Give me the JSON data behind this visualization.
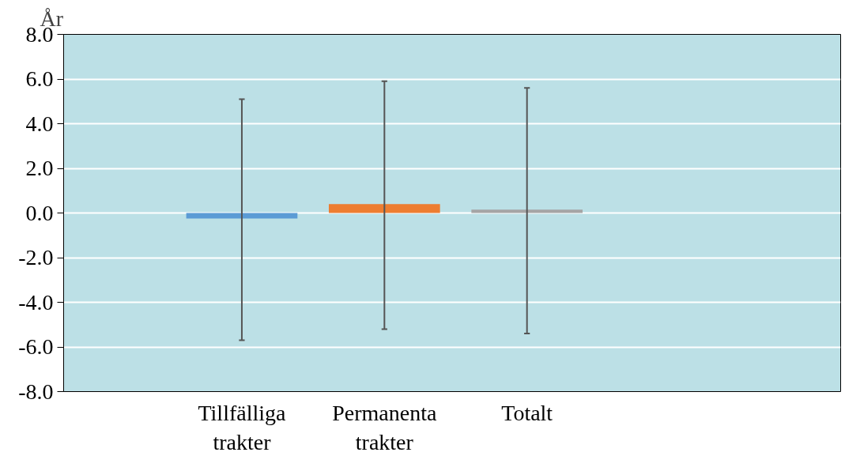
{
  "chart_data": {
    "type": "bar",
    "ylabel": "År",
    "categories": [
      "Tillfälliga trakter",
      "Permanenta trakter",
      "Totalt"
    ],
    "values": [
      -0.25,
      0.4,
      0.15
    ],
    "colors": [
      "#5b9bd5",
      "#ed7d31",
      "#a5a5a5"
    ],
    "errors": [
      [
        -5.7,
        5.1
      ],
      [
        -5.2,
        5.9
      ],
      [
        -5.4,
        5.6
      ]
    ],
    "ylim": [
      -8,
      8
    ],
    "yticks": [
      {
        "value": 8,
        "label": "8.0"
      },
      {
        "value": 6,
        "label": "6.0"
      },
      {
        "value": 4,
        "label": "4.0"
      },
      {
        "value": 2,
        "label": "2.0"
      },
      {
        "value": 0,
        "label": "0.0"
      },
      {
        "value": -2,
        "label": "-2.0"
      },
      {
        "value": -4,
        "label": "-4.0"
      },
      {
        "value": -6,
        "label": "-6.0"
      },
      {
        "value": -8,
        "label": "-8.0"
      }
    ],
    "grid": "y"
  }
}
